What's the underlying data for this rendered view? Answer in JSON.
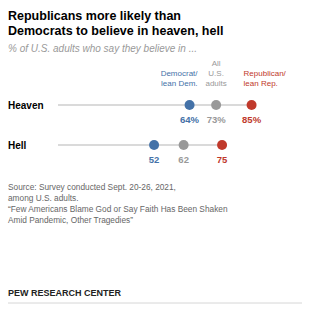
{
  "chart_data": {
    "type": "dot",
    "title": "Republicans more likely than\nDemocrats to believe in heaven, hell",
    "subtitle": "% of U.S. adults who say they believe in ...",
    "categories": [
      "Heaven",
      "Hell"
    ],
    "series": [
      {
        "name": "Democrat/\nlean Dem.",
        "color": "#4472a8",
        "values": [
          64,
          52
        ],
        "value_labels": [
          "64%",
          "52"
        ]
      },
      {
        "name": "All\nU.S.\nadults",
        "color": "#999999",
        "values": [
          73,
          62
        ],
        "value_labels": [
          "73%",
          "62"
        ]
      },
      {
        "name": "Republican/\nlean Rep.",
        "color": "#c0392b",
        "values": [
          85,
          75
        ],
        "value_labels": [
          "85%",
          "75"
        ]
      }
    ],
    "xlim": [
      10,
      98
    ],
    "data_labels": true,
    "source": "Source: Survey conducted Sept. 20-26, 2021,\namong U.S. adults.\n“Few Americans Blame God or Say Faith Has Been Shaken\nAmid Pandemic, Other Tragedies”",
    "footer": "PEW RESEARCH CENTER"
  }
}
